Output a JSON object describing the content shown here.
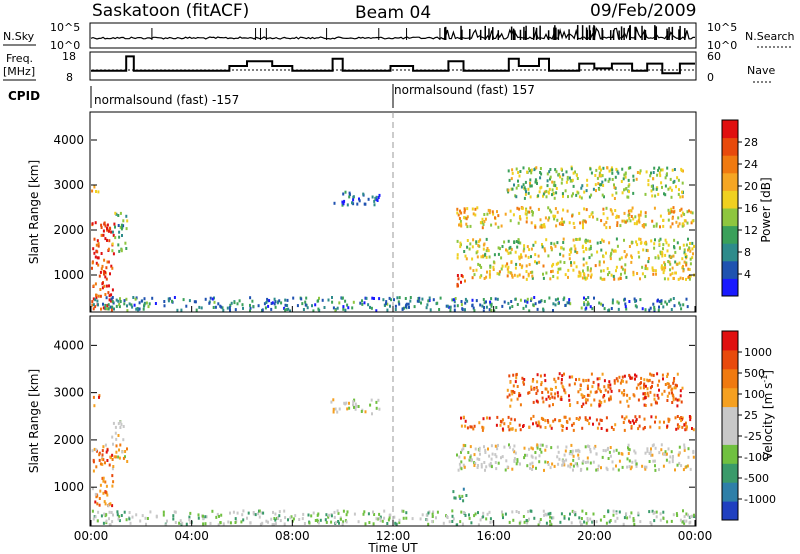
{
  "header": {
    "station": "Saskatoon (fitACF)",
    "beam": "Beam 04",
    "date": "09/Feb/2009"
  },
  "noise_panel": {
    "left_label": "N.Sky",
    "right_label": "N.Search",
    "left_ticks": [
      "10^5",
      "10^0"
    ],
    "right_ticks": [
      "10^5",
      "10^0"
    ]
  },
  "freq_panel": {
    "left_label_1": "Freq.",
    "left_label_2": "[MHz]",
    "right_label": "Nave",
    "left_ticks": [
      "18",
      "8"
    ],
    "right_ticks": [
      "60",
      "0"
    ],
    "freq_steps": [
      {
        "t": 0.0,
        "f": 11
      },
      {
        "t": 1.4,
        "f": 17
      },
      {
        "t": 1.7,
        "f": 11
      },
      {
        "t": 5.5,
        "f": 13
      },
      {
        "t": 6.2,
        "f": 15
      },
      {
        "t": 7.2,
        "f": 13
      },
      {
        "t": 8.0,
        "f": 11
      },
      {
        "t": 9.6,
        "f": 16
      },
      {
        "t": 10.0,
        "f": 11
      },
      {
        "t": 11.9,
        "f": 13
      },
      {
        "t": 12.8,
        "f": 11
      },
      {
        "t": 14.2,
        "f": 15
      },
      {
        "t": 14.8,
        "f": 11
      },
      {
        "t": 16.2,
        "f": 11
      },
      {
        "t": 16.6,
        "f": 16
      },
      {
        "t": 17.0,
        "f": 13
      },
      {
        "t": 17.8,
        "f": 16
      },
      {
        "t": 18.2,
        "f": 11
      },
      {
        "t": 19.4,
        "f": 14
      },
      {
        "t": 20.0,
        "f": 12
      },
      {
        "t": 20.7,
        "f": 14
      },
      {
        "t": 21.5,
        "f": 11
      },
      {
        "t": 22.1,
        "f": 14
      },
      {
        "t": 22.7,
        "f": 10
      },
      {
        "t": 23.4,
        "f": 14
      },
      {
        "t": 24.0,
        "f": 14
      }
    ]
  },
  "cpid": {
    "label": "CPID",
    "mode_1": "normalsound (fast) -157",
    "mode_2": "normalsound (fast) 157",
    "switch_hour": 12.0
  },
  "chart_data": [
    {
      "type": "heatmap",
      "name": "power",
      "xlabel": "Time UT",
      "ylabel": "Slant Range [km]",
      "xlim": [
        0,
        24
      ],
      "ylim": [
        200,
        4600
      ],
      "y_ticks": [
        "1000",
        "2000",
        "3000",
        "4000"
      ],
      "colorbar": {
        "label": "Power [dB]",
        "ticks": [
          "4",
          "8",
          "12",
          "16",
          "20",
          "24",
          "28"
        ],
        "colors": [
          "#1a1aff",
          "#1f52b0",
          "#2e8b8b",
          "#3aa05a",
          "#8ec63f",
          "#f0d020",
          "#f5a623",
          "#f07a10",
          "#e84a0c",
          "#e01010"
        ]
      },
      "regions": [
        {
          "t0": 0.0,
          "t1": 0.9,
          "r0": 200,
          "r1": 2200,
          "level": 0.9
        },
        {
          "t0": 0.8,
          "t1": 1.4,
          "r0": 1500,
          "r1": 2400,
          "level": 0.35
        },
        {
          "t0": 0.0,
          "t1": 0.3,
          "r0": 2700,
          "r1": 3000,
          "level": 0.6
        },
        {
          "t0": 9.5,
          "t1": 11.5,
          "r0": 2550,
          "r1": 2850,
          "level": 0.15
        },
        {
          "t0": 14.3,
          "t1": 14.9,
          "r0": 700,
          "r1": 1000,
          "level": 0.9
        },
        {
          "t0": 14.5,
          "t1": 24.0,
          "r0": 2050,
          "r1": 2500,
          "level": 0.6
        },
        {
          "t0": 14.5,
          "t1": 24.0,
          "r0": 1350,
          "r1": 1800,
          "level": 0.5
        },
        {
          "t0": 15.0,
          "t1": 24.0,
          "r0": 900,
          "r1": 1300,
          "level": 0.55
        },
        {
          "t0": 16.5,
          "t1": 23.5,
          "r0": 2700,
          "r1": 3400,
          "level": 0.45
        },
        {
          "t0": 0.0,
          "t1": 24.0,
          "r0": 200,
          "r1": 500,
          "level": 0.25
        }
      ]
    },
    {
      "type": "heatmap",
      "name": "velocity",
      "xlabel": "Time UT",
      "ylabel": "Slant Range [km]",
      "xlim": [
        0,
        24
      ],
      "ylim": [
        200,
        4600
      ],
      "x_ticks": [
        "00:00",
        "04:00",
        "08:00",
        "12:00",
        "16:00",
        "20:00",
        "00:00"
      ],
      "y_ticks": [
        "1000",
        "2000",
        "3000",
        "4000"
      ],
      "colorbar": {
        "label": "Velocity [m s",
        "label_sup": "-1",
        "label_end": "]",
        "ticks": [
          "1000",
          "500",
          "100",
          "25",
          "-25",
          "-100",
          "-500",
          "-1000"
        ],
        "colors": [
          "#2040c0",
          "#2e7fa8",
          "#3a9a6a",
          "#70c040",
          "#c8c8c8",
          "#c8c8c8",
          "#f5a020",
          "#f07a10",
          "#e84a0c",
          "#e01010"
        ]
      },
      "regions": [
        {
          "t0": 0.0,
          "t1": 0.9,
          "r0": 600,
          "r1": 1900,
          "level": 0.75
        },
        {
          "t0": 0.8,
          "t1": 1.4,
          "r0": 1500,
          "r1": 2400,
          "level": 0.55
        },
        {
          "t0": 0.0,
          "t1": 0.3,
          "r0": 2700,
          "r1": 3000,
          "level": 0.85
        },
        {
          "t0": 9.5,
          "t1": 11.5,
          "r0": 2550,
          "r1": 2850,
          "level": 0.5
        },
        {
          "t0": 14.3,
          "t1": 14.9,
          "r0": 700,
          "r1": 1000,
          "level": 0.35
        },
        {
          "t0": 14.5,
          "t1": 24.0,
          "r0": 2200,
          "r1": 2500,
          "level": 0.8
        },
        {
          "t0": 14.5,
          "t1": 24.0,
          "r0": 1350,
          "r1": 1900,
          "level": 0.5
        },
        {
          "t0": 16.5,
          "t1": 23.5,
          "r0": 2700,
          "r1": 3400,
          "level": 0.8
        },
        {
          "t0": 0.0,
          "t1": 24.0,
          "r0": 200,
          "r1": 500,
          "level": 0.4
        }
      ]
    }
  ]
}
